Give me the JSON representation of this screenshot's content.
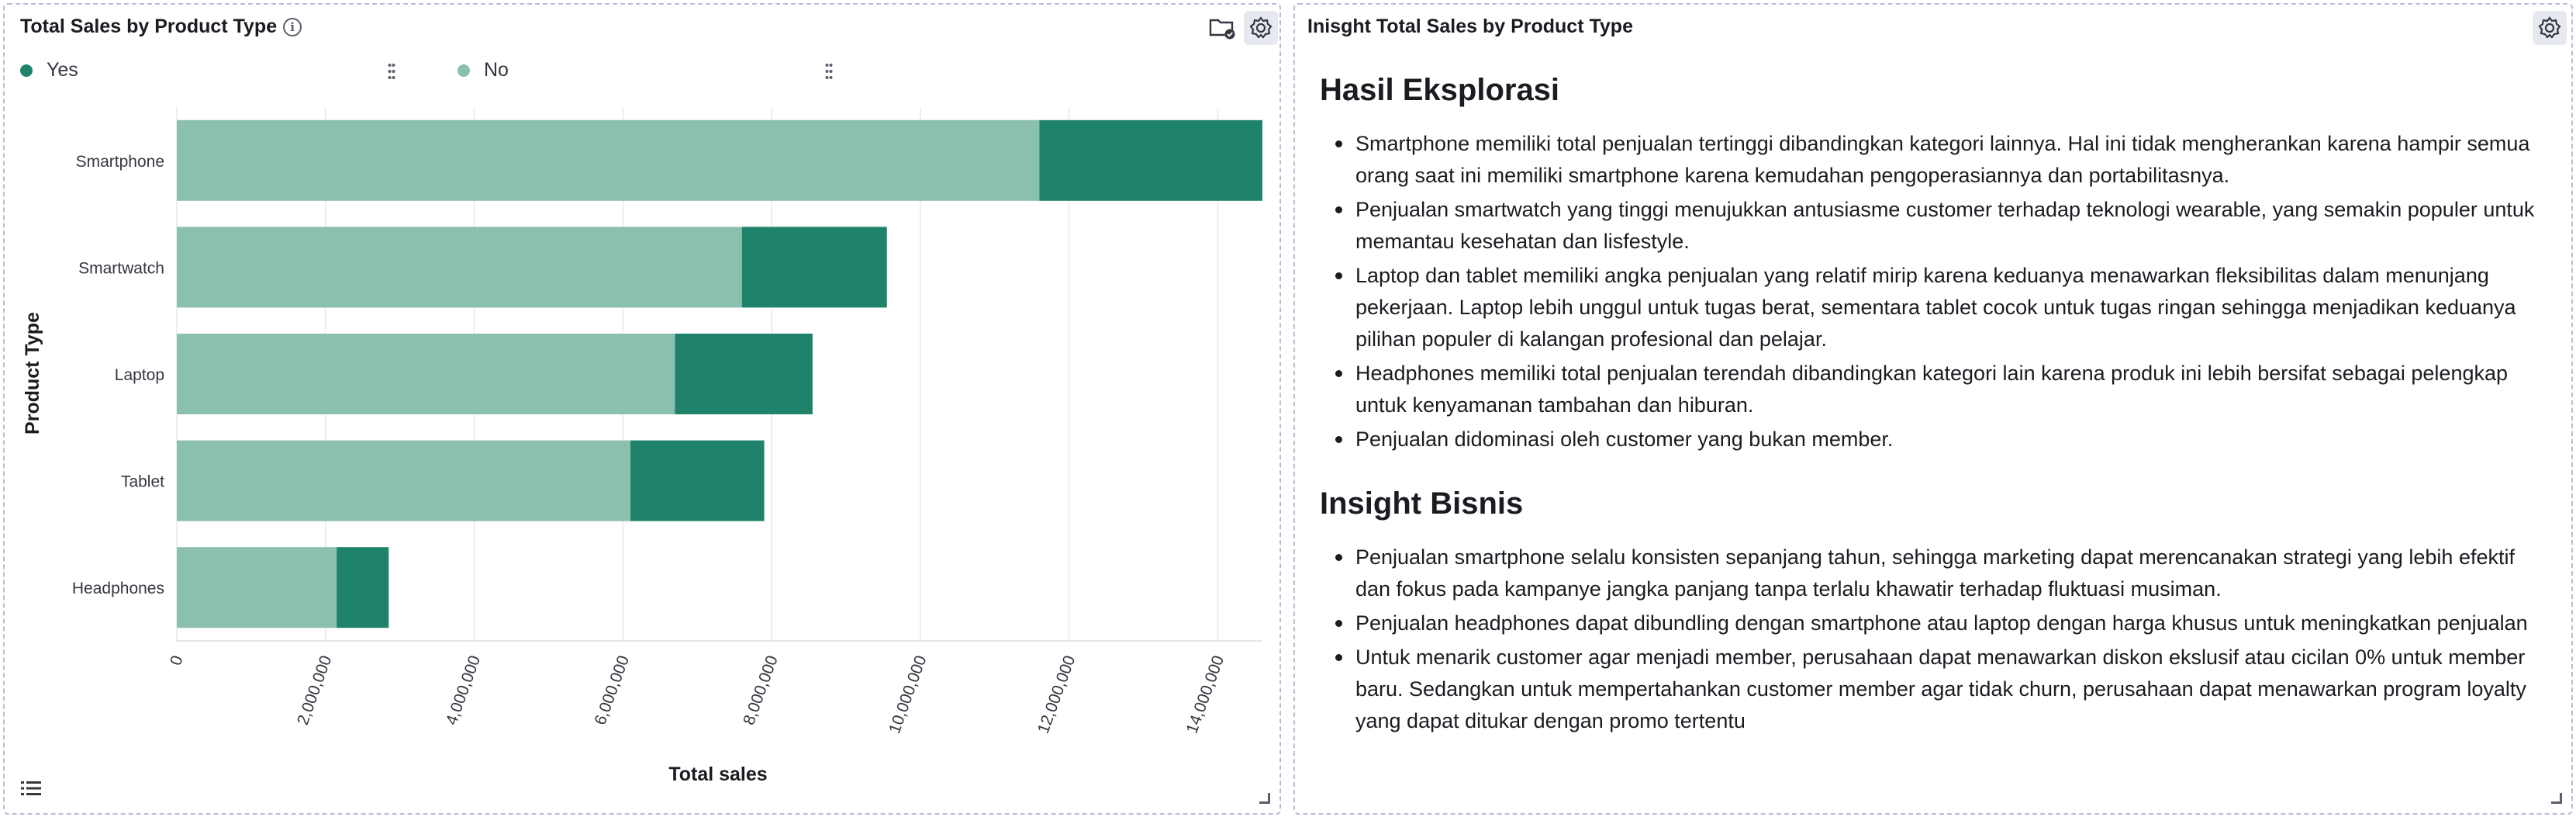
{
  "chart_panel": {
    "title": "Total Sales by Product Type",
    "icons": [
      "info-icon",
      "folder-check-icon",
      "gear-icon",
      "list-icon"
    ],
    "legend": [
      {
        "label": "Yes",
        "color": "#1f836b"
      },
      {
        "label": "No",
        "color": "#8bbfae"
      }
    ]
  },
  "chart_data": {
    "type": "bar",
    "orientation": "horizontal",
    "stacked": true,
    "categories": [
      "Smartphone",
      "Smartwatch",
      "Laptop",
      "Tablet",
      "Headphones"
    ],
    "series": [
      {
        "name": "No",
        "color": "#8bbfae",
        "values": [
          11600000,
          7600000,
          6700000,
          6100000,
          2150000
        ]
      },
      {
        "name": "Yes",
        "color": "#1f836b",
        "values": [
          3000000,
          1950000,
          1850000,
          1800000,
          700000
        ]
      }
    ],
    "xlabel": "Total sales",
    "ylabel": "Product Type",
    "xlim": [
      0,
      14600000
    ],
    "xticks": [
      0,
      2000000,
      4000000,
      6000000,
      8000000,
      10000000,
      12000000,
      14000000
    ],
    "xtick_labels": [
      "0",
      "2,000,000",
      "4,000,000",
      "6,000,000",
      "8,000,000",
      "10,000,000",
      "12,000,000",
      "14,000,000"
    ],
    "grid": true,
    "legend_position": "top-left"
  },
  "insight_panel": {
    "title": "Inisght Total Sales by Product Type",
    "sections": [
      {
        "heading": "Hasil Eksplorasi",
        "items": [
          "Smartphone memiliki total penjualan tertinggi dibandingkan kategori lainnya. Hal ini tidak mengherankan karena hampir semua orang saat ini memiliki smartphone karena kemudahan pengoperasiannya dan portabilitasnya.",
          "Penjualan smartwatch yang tinggi menujukkan antusiasme customer terhadap teknologi wearable, yang semakin populer untuk memantau kesehatan dan lisfestyle.",
          "Laptop dan tablet memiliki angka penjualan yang relatif mirip karena keduanya menawarkan fleksibilitas dalam menunjang pekerjaan. Laptop lebih unggul untuk tugas berat, sementara tablet cocok untuk tugas ringan sehingga menjadikan keduanya pilihan populer di kalangan profesional dan pelajar.",
          "Headphones memiliki total penjualan terendah dibandingkan kategori lain karena produk ini lebih bersifat sebagai pelengkap untuk kenyamanan tambahan dan hiburan.",
          "Penjualan didominasi oleh customer yang bukan member."
        ]
      },
      {
        "heading": "Insight Bisnis",
        "items": [
          "Penjualan smartphone selalu konsisten sepanjang tahun, sehingga marketing dapat merencanakan strategi yang lebih efektif dan fokus pada kampanye jangka panjang tanpa terlalu khawatir terhadap fluktuasi musiman.",
          "Penjualan headphones dapat dibundling dengan smartphone atau laptop dengan harga khusus untuk meningkatkan penjualan",
          "Untuk menarik customer agar menjadi member, perusahaan dapat menawarkan diskon ekslusif atau cicilan 0% untuk member baru. Sedangkan untuk mempertahankan customer member agar tidak churn, perusahaan dapat menawarkan program loyalty yang dapat ditukar dengan promo tertentu"
        ]
      }
    ]
  }
}
